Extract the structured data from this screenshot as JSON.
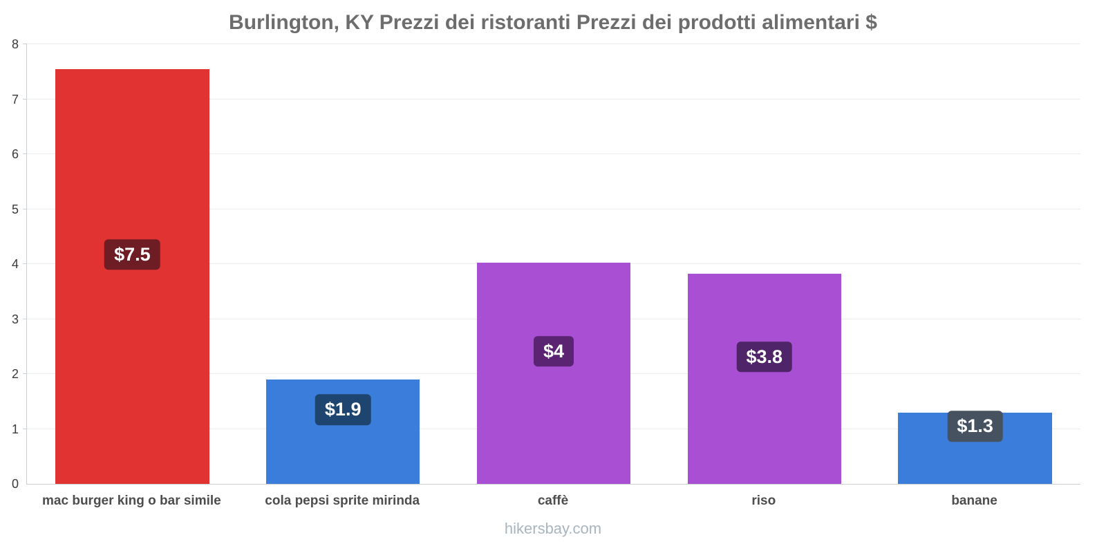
{
  "chart_data": {
    "type": "bar",
    "title": "Burlington, KY Prezzi dei ristoranti Prezzi dei prodotti alimentari $",
    "categories": [
      "mac burger king o bar simile",
      "cola pepsi sprite mirinda",
      "caffè",
      "riso",
      "banane"
    ],
    "values": [
      7.55,
      1.9,
      4.02,
      3.82,
      1.3
    ],
    "value_labels": [
      "$7.5",
      "$1.9",
      "$4",
      "$3.8",
      "$1.3"
    ],
    "bar_colors": [
      "#e23333",
      "#3b7ddb",
      "#a94fd3",
      "#a94fd3",
      "#3b7ddb"
    ],
    "badge_colors": [
      "#6f1d24",
      "#1e4570",
      "#5a2472",
      "#4f2468",
      "#46525f"
    ],
    "ylim": [
      0,
      8
    ],
    "yticks": [
      0,
      1,
      2,
      3,
      4,
      5,
      6,
      7,
      8
    ],
    "grid": true,
    "legend": false,
    "xlabel": "",
    "ylabel": ""
  },
  "footer": {
    "text": "hikersbay.com"
  }
}
